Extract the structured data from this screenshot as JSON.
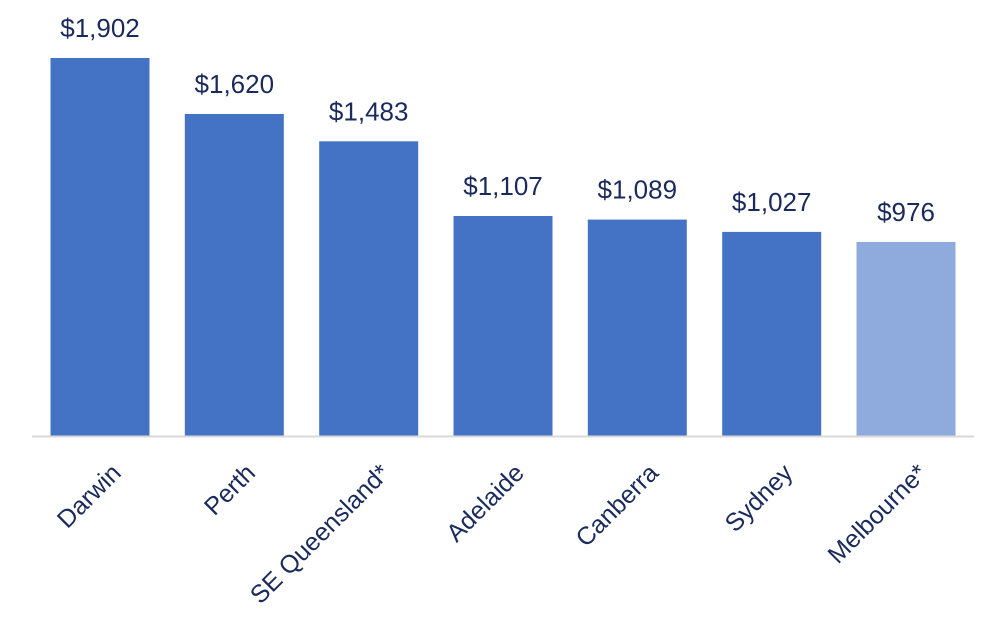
{
  "chart_data": {
    "type": "bar",
    "title": "",
    "xlabel": "",
    "ylabel": "",
    "categories": [
      "Darwin",
      "Perth",
      "SE Queensland*",
      "Adelaide",
      "Canberra",
      "Sydney",
      "Melbourne*"
    ],
    "values": [
      1902,
      1620,
      1483,
      1107,
      1089,
      1027,
      976
    ],
    "value_labels": [
      "$1,902",
      "$1,620",
      "$1,483",
      "$1,107",
      "$1,089",
      "$1,027",
      "$976"
    ],
    "bar_colors": [
      "#4472c4",
      "#4472c4",
      "#4472c4",
      "#4472c4",
      "#4472c4",
      "#4472c4",
      "#8faadc"
    ],
    "ylim": [
      0,
      1902
    ],
    "grid": false,
    "legend": "none",
    "baseline_color": "#d9d9d9",
    "label_color": "#1b2a5c"
  }
}
